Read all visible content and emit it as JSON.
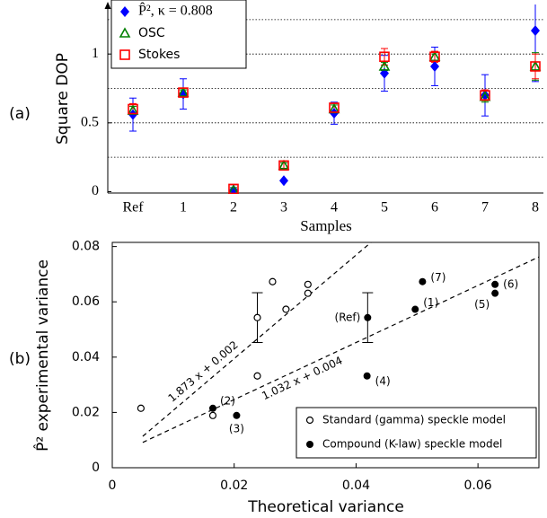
{
  "chart_data": [
    {
      "type": "errorbar",
      "panel_label": "(a)",
      "ylabel": "Square DOP",
      "xlabel": "Samples",
      "categories": [
        "Ref",
        "1",
        "2",
        "3",
        "4",
        "5",
        "6",
        "7",
        "8"
      ],
      "ylim": [
        -0.01,
        1.36
      ],
      "yticks": [
        0,
        0.5,
        1
      ],
      "grid_lines": [
        0.25,
        0.5,
        0.75,
        1,
        1.25
      ],
      "legend": "upper left",
      "series": [
        {
          "name": "P̂²,  κ = 0.808",
          "color": "#0000ff",
          "marker": "diamond",
          "values": [
            0.56,
            0.71,
            0.01,
            0.08,
            0.57,
            0.86,
            0.91,
            0.7,
            1.17
          ],
          "errors": [
            0.12,
            0.11,
            0.04,
            0,
            0.08,
            0.13,
            0.14,
            0.15,
            0.37
          ]
        },
        {
          "name": "OSC",
          "color": "#008000",
          "marker": "triangle",
          "values": [
            0.59,
            0.72,
            0.01,
            0.19,
            0.6,
            0.91,
            0.98,
            0.69,
            0.91
          ],
          "errors": [
            0.03,
            0.02,
            0.02,
            0.02,
            0.03,
            0.03,
            0.03,
            0.04,
            0.1
          ]
        },
        {
          "name": "Stokes",
          "color": "#ff0000",
          "marker": "square",
          "values": [
            0.6,
            0.72,
            0.02,
            0.19,
            0.61,
            0.98,
            0.98,
            0.7,
            0.91
          ],
          "errors": [
            0.04,
            0.03,
            0.03,
            0.03,
            0.03,
            0.06,
            0.04,
            0.04,
            0.09
          ]
        }
      ]
    },
    {
      "type": "scatter",
      "panel_label": "(b)",
      "xlabel": "Theoretical variance",
      "ylabel": "P̂² experimental variance",
      "xlim": [
        0,
        0.07
      ],
      "ylim": [
        0,
        0.0815
      ],
      "xticks": [
        0,
        0.02,
        0.04,
        0.06
      ],
      "yticks": [
        0,
        0.02,
        0.04,
        0.06,
        0.08
      ],
      "legend": "lower right",
      "series": [
        {
          "name": "Standard (gamma) speckle model",
          "color": "#000000",
          "marker": "circle-open",
          "x": [
            0.0238,
            0.0285,
            0.0047,
            0.0165,
            0.0238,
            0.0321,
            0.0321,
            0.0263
          ],
          "values": [
            0.0543,
            0.0573,
            0.0215,
            0.0189,
            0.0332,
            0.0631,
            0.0663,
            0.0673
          ],
          "errors": [
            0.009,
            null,
            null,
            null,
            null,
            null,
            null,
            null
          ]
        },
        {
          "name": "Compound (K-law) speckle model",
          "color": "#000000",
          "marker": "circle",
          "x": [
            0.0419,
            0.0497,
            0.0165,
            0.0204,
            0.0418,
            0.0628,
            0.0628,
            0.0509
          ],
          "values": [
            0.0543,
            0.0573,
            0.0215,
            0.0189,
            0.0332,
            0.0631,
            0.0663,
            0.0673
          ],
          "errors": [
            0.009,
            null,
            null,
            null,
            null,
            null,
            null,
            null
          ],
          "point_labels": [
            "(Ref)",
            "(1)",
            "(2)",
            "(3)",
            "(4)",
            "(5)",
            "(6)",
            "(7)"
          ]
        }
      ],
      "fits": [
        {
          "label": "1.873 x + 0.002",
          "slope": 1.873,
          "intercept": 0.002,
          "x": [
            0.005,
            0.0425
          ]
        },
        {
          "label": "1.032 x + 0.004",
          "slope": 1.032,
          "intercept": 0.004,
          "x": [
            0.005,
            0.07
          ]
        }
      ]
    }
  ]
}
